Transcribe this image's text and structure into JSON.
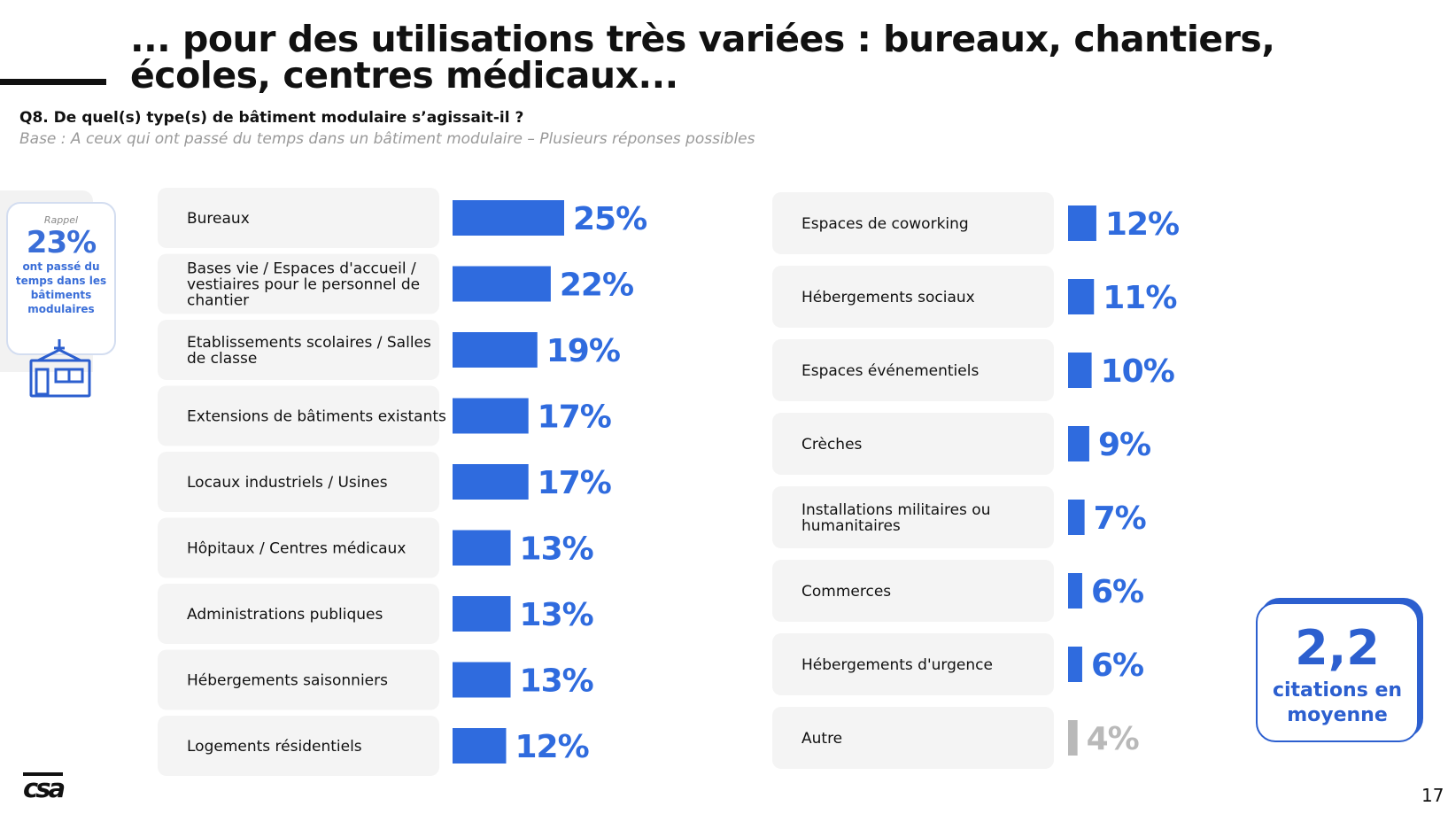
{
  "header": {
    "title": "... pour des utilisations très variées : bureaux, chantiers, écoles, centres médicaux...",
    "question": "Q8. De quel(s) type(s) de bâtiment modulaire s’agissait-il ?",
    "base": "Base : A ceux qui ont passé du temps dans un bâtiment modulaire – Plusieurs réponses possibles"
  },
  "rappel": {
    "label": "Rappel",
    "value": "23%",
    "text": "ont passé du temps dans les bâtiments modulaires",
    "icon": "modular-building-icon"
  },
  "chart_data": {
    "type": "bar",
    "orientation": "horizontal",
    "xlim": [
      0,
      25
    ],
    "bar_color": "#2f6bde",
    "other_color": "#b9b9b9",
    "label_color": "#2f6bde",
    "columns": [
      {
        "categories": [
          "Bureaux",
          "Bases vie / Espaces d'accueil / vestiaires pour le personnel de chantier",
          "Etablissements scolaires / Salles de classe",
          "Extensions de bâtiments existants",
          "Locaux industriels / Usines",
          "Hôpitaux / Centres médicaux",
          "Administrations publiques",
          "Hébergements saisonniers",
          "Logements résidentiels"
        ],
        "values": [
          25,
          22,
          19,
          17,
          17,
          13,
          13,
          13,
          12
        ],
        "labels": [
          "25%",
          "22%",
          "19%",
          "17%",
          "17%",
          "13%",
          "13%",
          "13%",
          "12%"
        ]
      },
      {
        "categories": [
          "Espaces de coworking",
          "Hébergements sociaux",
          "Espaces événementiels",
          "Crèches",
          "Installations militaires ou humanitaires",
          "Commerces",
          "Hébergements d'urgence",
          "Autre"
        ],
        "values": [
          12,
          11,
          10,
          9,
          7,
          6,
          6,
          4
        ],
        "labels": [
          "12%",
          "11%",
          "10%",
          "9%",
          "7%",
          "6%",
          "6%",
          "4%"
        ]
      }
    ]
  },
  "average": {
    "value": "2,2",
    "label": "citations en moyenne"
  },
  "footer": {
    "logo": "csa",
    "page": "17"
  }
}
